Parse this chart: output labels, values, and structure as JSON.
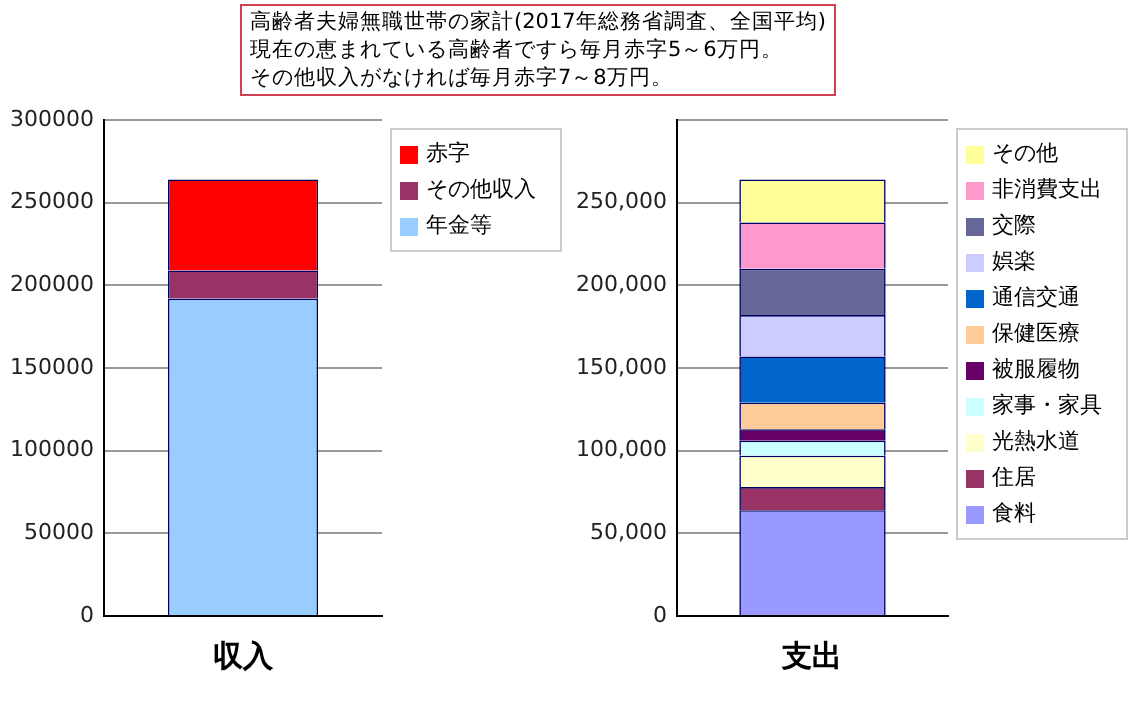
{
  "chart_data": [
    {
      "type": "bar",
      "title": "高齢者夫婦無職世帯の家計(2017年総務省調査、全国平均)",
      "annotations": [
        "現在の恵まれている高齢者ですら毎月赤字5～6万円。",
        "その他収入がなければ毎月赤字7～8万円。"
      ],
      "stacked": true,
      "categories": [
        "収入"
      ],
      "series": [
        {
          "name": "年金等",
          "color": "#99ccff",
          "values": [
            192000
          ]
        },
        {
          "name": "その他収入",
          "color": "#993366",
          "values": [
            17000
          ]
        },
        {
          "name": "赤字",
          "color": "#ff0000",
          "values": [
            55000
          ]
        }
      ],
      "ylim": [
        0,
        300000
      ],
      "yticks": [
        0,
        50000,
        100000,
        150000,
        200000,
        250000,
        300000
      ],
      "grid": "y",
      "legend": "right"
    },
    {
      "type": "bar",
      "stacked": true,
      "categories": [
        "支出"
      ],
      "series": [
        {
          "name": "食料",
          "color": "#9999ff",
          "values": [
            64000
          ]
        },
        {
          "name": "住居",
          "color": "#993366",
          "values": [
            14000
          ]
        },
        {
          "name": "光熱水道",
          "color": "#ffffcc",
          "values": [
            19000
          ]
        },
        {
          "name": "家事・家具",
          "color": "#ccffff",
          "values": [
            9000
          ]
        },
        {
          "name": "被服履物",
          "color": "#660066",
          "values": [
            7000
          ]
        },
        {
          "name": "保健医療",
          "color": "#ffcc99",
          "values": [
            16000
          ]
        },
        {
          "name": "通信交通",
          "color": "#0066cc",
          "values": [
            28000
          ]
        },
        {
          "name": "娯楽",
          "color": "#ccccff",
          "values": [
            25000
          ]
        },
        {
          "name": "交際",
          "color": "#666699",
          "values": [
            28000
          ]
        },
        {
          "name": "非消費支出",
          "color": "#ff99cc",
          "values": [
            28000
          ]
        },
        {
          "name": "その他",
          "color": "#ffff99",
          "values": [
            26000
          ]
        }
      ],
      "ylim": [
        0,
        300000
      ],
      "yticks": [
        0,
        {
          "value": 50000,
          "label": "50,000"
        },
        {
          "value": 100000,
          "label": "100,000"
        },
        {
          "value": 150000,
          "label": "150,000"
        },
        {
          "value": 200000,
          "label": "200,000"
        },
        {
          "value": 250000,
          "label": "250,000"
        },
        {
          "value": 300000,
          "label": null
        }
      ],
      "grid": "y",
      "legend": "right"
    }
  ]
}
